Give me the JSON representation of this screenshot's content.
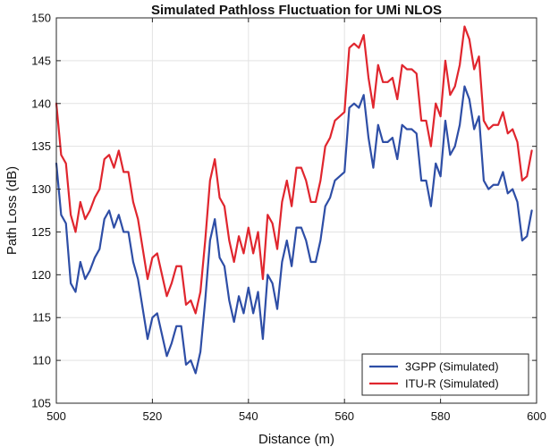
{
  "chart_data": {
    "type": "line",
    "title": "Simulated Pathloss Fluctuation for UMi NLOS",
    "xlabel": "Distance (m)",
    "ylabel": "Path Loss (dB)",
    "xlim": [
      500,
      600
    ],
    "ylim": [
      105,
      150
    ],
    "xticks": [
      500,
      520,
      540,
      560,
      580,
      600
    ],
    "yticks": [
      105,
      110,
      115,
      120,
      125,
      130,
      135,
      140,
      145,
      150
    ],
    "grid": true,
    "legend_position": "bottom-right",
    "series": [
      {
        "name": "3GPP (Simulated)",
        "color": "#2e4ea6",
        "points": [
          [
            500,
            133
          ],
          [
            501,
            127
          ],
          [
            502,
            126
          ],
          [
            503,
            119
          ],
          [
            504,
            118
          ],
          [
            505,
            121.5
          ],
          [
            506,
            119.5
          ],
          [
            507,
            120.5
          ],
          [
            508,
            122
          ],
          [
            509,
            123
          ],
          [
            510,
            126.5
          ],
          [
            511,
            127.5
          ],
          [
            512,
            125.5
          ],
          [
            513,
            127
          ],
          [
            514,
            125
          ],
          [
            515,
            125
          ],
          [
            516,
            121.5
          ],
          [
            517,
            119.5
          ],
          [
            518,
            116
          ],
          [
            519,
            112.5
          ],
          [
            520,
            115
          ],
          [
            521,
            115.5
          ],
          [
            522,
            113
          ],
          [
            523,
            110.5
          ],
          [
            524,
            112
          ],
          [
            525,
            114
          ],
          [
            526,
            114
          ],
          [
            527,
            109.5
          ],
          [
            528,
            110
          ],
          [
            529,
            108.5
          ],
          [
            530,
            111
          ],
          [
            531,
            117
          ],
          [
            532,
            124
          ],
          [
            533,
            126.5
          ],
          [
            534,
            122
          ],
          [
            535,
            121
          ],
          [
            536,
            117
          ],
          [
            537,
            114.5
          ],
          [
            538,
            117.5
          ],
          [
            539,
            115.5
          ],
          [
            540,
            118.5
          ],
          [
            541,
            115.5
          ],
          [
            542,
            118
          ],
          [
            543,
            112.5
          ],
          [
            544,
            120
          ],
          [
            545,
            119
          ],
          [
            546,
            116
          ],
          [
            547,
            121.5
          ],
          [
            548,
            124
          ],
          [
            549,
            121
          ],
          [
            550,
            125.5
          ],
          [
            551,
            125.5
          ],
          [
            552,
            124
          ],
          [
            553,
            121.5
          ],
          [
            554,
            121.5
          ],
          [
            555,
            124
          ],
          [
            556,
            128
          ],
          [
            557,
            129
          ],
          [
            558,
            131
          ],
          [
            559,
            131.5
          ],
          [
            560,
            132
          ],
          [
            561,
            139.5
          ],
          [
            562,
            140
          ],
          [
            563,
            139.5
          ],
          [
            564,
            141
          ],
          [
            565,
            136
          ],
          [
            566,
            132.5
          ],
          [
            567,
            137.5
          ],
          [
            568,
            135.5
          ],
          [
            569,
            135.5
          ],
          [
            570,
            136
          ],
          [
            571,
            133.5
          ],
          [
            572,
            137.5
          ],
          [
            573,
            137
          ],
          [
            574,
            137
          ],
          [
            575,
            136.5
          ],
          [
            576,
            131
          ],
          [
            577,
            131
          ],
          [
            578,
            128
          ],
          [
            579,
            133
          ],
          [
            580,
            131.5
          ],
          [
            581,
            138
          ],
          [
            582,
            134
          ],
          [
            583,
            135
          ],
          [
            584,
            137.5
          ],
          [
            585,
            142
          ],
          [
            586,
            140.5
          ],
          [
            587,
            137
          ],
          [
            588,
            138.5
          ],
          [
            589,
            131
          ],
          [
            590,
            130
          ],
          [
            591,
            130.5
          ],
          [
            592,
            130.5
          ],
          [
            593,
            132
          ],
          [
            594,
            129.5
          ],
          [
            595,
            130
          ],
          [
            596,
            128.5
          ],
          [
            597,
            124
          ],
          [
            598,
            124.5
          ],
          [
            599,
            127.5
          ]
        ]
      },
      {
        "name": "ITU-R (Simulated)",
        "color": "#e0262e",
        "points": [
          [
            500,
            140
          ],
          [
            501,
            134
          ],
          [
            502,
            133
          ],
          [
            503,
            127
          ],
          [
            504,
            125
          ],
          [
            505,
            128.5
          ],
          [
            506,
            126.5
          ],
          [
            507,
            127.5
          ],
          [
            508,
            129
          ],
          [
            509,
            130
          ],
          [
            510,
            133.5
          ],
          [
            511,
            134
          ],
          [
            512,
            132.5
          ],
          [
            513,
            134.5
          ],
          [
            514,
            132
          ],
          [
            515,
            132
          ],
          [
            516,
            128.5
          ],
          [
            517,
            126.5
          ],
          [
            518,
            123
          ],
          [
            519,
            119.5
          ],
          [
            520,
            122
          ],
          [
            521,
            122.5
          ],
          [
            522,
            120
          ],
          [
            523,
            117.5
          ],
          [
            524,
            119
          ],
          [
            525,
            121
          ],
          [
            526,
            121
          ],
          [
            527,
            116.5
          ],
          [
            528,
            117
          ],
          [
            529,
            115.5
          ],
          [
            530,
            118
          ],
          [
            531,
            124
          ],
          [
            532,
            131
          ],
          [
            533,
            133.5
          ],
          [
            534,
            129
          ],
          [
            535,
            128
          ],
          [
            536,
            124
          ],
          [
            537,
            121.5
          ],
          [
            538,
            124.5
          ],
          [
            539,
            122.5
          ],
          [
            540,
            125.5
          ],
          [
            541,
            122.5
          ],
          [
            542,
            125
          ],
          [
            543,
            119.5
          ],
          [
            544,
            127
          ],
          [
            545,
            126
          ],
          [
            546,
            123
          ],
          [
            547,
            128.5
          ],
          [
            548,
            131
          ],
          [
            549,
            128
          ],
          [
            550,
            132.5
          ],
          [
            551,
            132.5
          ],
          [
            552,
            131
          ],
          [
            553,
            128.5
          ],
          [
            554,
            128.5
          ],
          [
            555,
            131
          ],
          [
            556,
            135
          ],
          [
            557,
            136
          ],
          [
            558,
            138
          ],
          [
            559,
            138.5
          ],
          [
            560,
            139
          ],
          [
            561,
            146.5
          ],
          [
            562,
            147
          ],
          [
            563,
            146.5
          ],
          [
            564,
            148
          ],
          [
            565,
            143
          ],
          [
            566,
            139.5
          ],
          [
            567,
            144.5
          ],
          [
            568,
            142.5
          ],
          [
            569,
            142.5
          ],
          [
            570,
            143
          ],
          [
            571,
            140.5
          ],
          [
            572,
            144.5
          ],
          [
            573,
            144
          ],
          [
            574,
            144
          ],
          [
            575,
            143.5
          ],
          [
            576,
            138
          ],
          [
            577,
            138
          ],
          [
            578,
            135
          ],
          [
            579,
            140
          ],
          [
            580,
            138.5
          ],
          [
            581,
            145
          ],
          [
            582,
            141
          ],
          [
            583,
            142
          ],
          [
            584,
            144.5
          ],
          [
            585,
            149
          ],
          [
            586,
            147.5
          ],
          [
            587,
            144
          ],
          [
            588,
            145.5
          ],
          [
            589,
            138
          ],
          [
            590,
            137
          ],
          [
            591,
            137.5
          ],
          [
            592,
            137.5
          ],
          [
            593,
            139
          ],
          [
            594,
            136.5
          ],
          [
            595,
            137
          ],
          [
            596,
            135.5
          ],
          [
            597,
            131
          ],
          [
            598,
            131.5
          ],
          [
            599,
            134.5
          ]
        ]
      }
    ]
  }
}
